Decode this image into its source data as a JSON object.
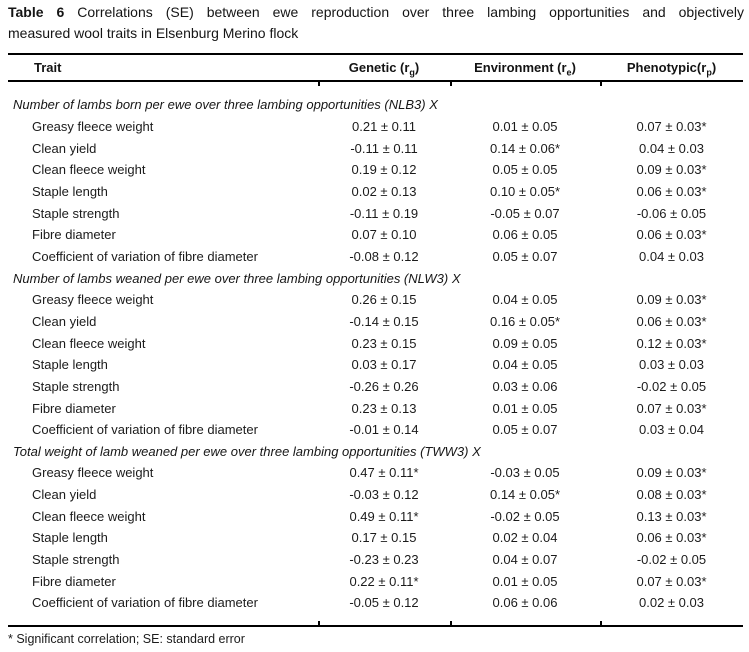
{
  "title": {
    "label": "Table 6",
    "line1_rest": "Correlations (SE) between ewe reproduction over three lambing opportunities and objectively",
    "line2": "measured wool traits in Elsenburg Merino flock"
  },
  "table": {
    "columns": {
      "trait": "Trait",
      "genetic": {
        "pre": "Genetic (r",
        "sub": "g",
        "post": ")"
      },
      "environment": {
        "pre": "Environment (r",
        "sub": "e",
        "post": ")"
      },
      "phenotypic": {
        "pre": "Phenotypic(r",
        "sub": "p",
        "post": ")"
      }
    },
    "sections": [
      {
        "header": "Number of lambs born per ewe over three lambing opportunities (NLB3) X",
        "rows": [
          {
            "trait": "Greasy fleece weight",
            "genetic": "0.21 ± 0.11",
            "environment": "0.01 ± 0.05",
            "phenotypic": "0.07 ± 0.03*"
          },
          {
            "trait": "Clean yield",
            "genetic": "-0.11 ± 0.11",
            "environment": "0.14 ± 0.06*",
            "phenotypic": "0.04 ± 0.03"
          },
          {
            "trait": "Clean fleece weight",
            "genetic": "0.19 ± 0.12",
            "environment": "0.05 ± 0.05",
            "phenotypic": "0.09 ± 0.03*"
          },
          {
            "trait": "Staple length",
            "genetic": "0.02 ± 0.13",
            "environment": "0.10 ± 0.05*",
            "phenotypic": "0.06 ± 0.03*"
          },
          {
            "trait": "Staple strength",
            "genetic": "-0.11 ± 0.19",
            "environment": "-0.05 ± 0.07",
            "phenotypic": "-0.06 ± 0.05"
          },
          {
            "trait": "Fibre diameter",
            "genetic": "0.07 ± 0.10",
            "environment": "0.06 ± 0.05",
            "phenotypic": "0.06 ± 0.03*"
          },
          {
            "trait": "Coefficient of variation of fibre diameter",
            "genetic": "-0.08 ± 0.12",
            "environment": "0.05 ± 0.07",
            "phenotypic": "0.04 ± 0.03"
          }
        ]
      },
      {
        "header": "Number of lambs weaned per ewe over three lambing opportunities (NLW3) X",
        "rows": [
          {
            "trait": "Greasy fleece weight",
            "genetic": "0.26 ± 0.15",
            "environment": "0.04 ± 0.05",
            "phenotypic": "0.09 ± 0.03*"
          },
          {
            "trait": "Clean yield",
            "genetic": "-0.14 ± 0.15",
            "environment": "0.16 ± 0.05*",
            "phenotypic": "0.06 ± 0.03*"
          },
          {
            "trait": "Clean fleece weight",
            "genetic": "0.23 ± 0.15",
            "environment": "0.09 ± 0.05",
            "phenotypic": "0.12 ± 0.03*"
          },
          {
            "trait": "Staple length",
            "genetic": "0.03 ± 0.17",
            "environment": "0.04 ± 0.05",
            "phenotypic": "0.03 ± 0.03"
          },
          {
            "trait": "Staple strength",
            "genetic": "-0.26 ± 0.26",
            "environment": "0.03 ± 0.06",
            "phenotypic": "-0.02 ± 0.05"
          },
          {
            "trait": "Fibre diameter",
            "genetic": "0.23 ± 0.13",
            "environment": "0.01 ± 0.05",
            "phenotypic": "0.07 ± 0.03*"
          },
          {
            "trait": "Coefficient of variation of fibre diameter",
            "genetic": "-0.01 ± 0.14",
            "environment": "0.05 ± 0.07",
            "phenotypic": "0.03 ± 0.04"
          }
        ]
      },
      {
        "header": "Total weight of lamb weaned per ewe over three lambing opportunities (TWW3) X",
        "rows": [
          {
            "trait": "Greasy fleece weight",
            "genetic": "0.47 ± 0.11*",
            "environment": "-0.03 ± 0.05",
            "phenotypic": "0.09 ± 0.03*"
          },
          {
            "trait": "Clean yield",
            "genetic": "-0.03 ± 0.12",
            "environment": "0.14 ± 0.05*",
            "phenotypic": "0.08 ± 0.03*"
          },
          {
            "trait": "Clean fleece weight",
            "genetic": "0.49 ± 0.11*",
            "environment": "-0.02 ± 0.05",
            "phenotypic": "0.13 ± 0.03*"
          },
          {
            "trait": "Staple length",
            "genetic": "0.17 ± 0.15",
            "environment": "0.02 ± 0.04",
            "phenotypic": "0.06 ± 0.03*"
          },
          {
            "trait": "Staple strength",
            "genetic": "-0.23 ± 0.23",
            "environment": "0.04 ± 0.07",
            "phenotypic": "-0.02 ± 0.05"
          },
          {
            "trait": "Fibre diameter",
            "genetic": "0.22 ± 0.11*",
            "environment": "0.01 ± 0.05",
            "phenotypic": "0.07 ± 0.03*"
          },
          {
            "trait": "Coefficient of variation of fibre diameter",
            "genetic": "-0.05 ± 0.12",
            "environment": "0.06 ± 0.06",
            "phenotypic": "0.02 ± 0.03"
          }
        ]
      }
    ]
  },
  "footnote": "* Significant correlation; SE: standard error",
  "colors": {
    "text": "#1b1b1b",
    "rule": "#000000",
    "background": "#ffffff"
  }
}
